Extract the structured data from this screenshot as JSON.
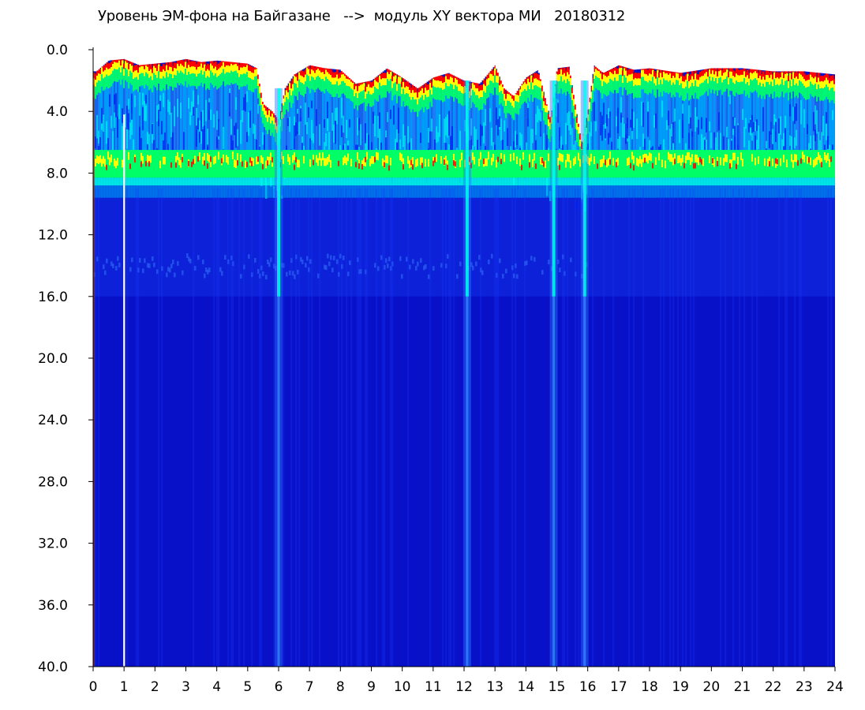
{
  "chart_data": {
    "type": "heatmap",
    "title": "Уровень ЭМ-фона на Байгазане   -->  модуль XY вектора МИ   20180312",
    "xlabel": "",
    "ylabel": "",
    "xlim": [
      0,
      24
    ],
    "ylim": [
      0,
      40
    ],
    "y_inverted": true,
    "x_ticks": [
      "0",
      "1",
      "2",
      "3",
      "4",
      "5",
      "6",
      "7",
      "8",
      "9",
      "10",
      "11",
      "12",
      "13",
      "14",
      "15",
      "16",
      "17",
      "18",
      "19",
      "20",
      "21",
      "22",
      "23",
      "24"
    ],
    "y_ticks": [
      "0.0",
      "4.0",
      "8.0",
      "12.0",
      "16.0",
      "20.0",
      "24.0",
      "28.0",
      "32.0",
      "36.0",
      "40.0"
    ],
    "grid": false,
    "colormap": [
      "#0000cc",
      "#0022ee",
      "#00aaff",
      "#00ffee",
      "#00ff66",
      "#ffff00",
      "#ff0000"
    ],
    "upper_edge_by_hour": [
      [
        0.1,
        1.4
      ],
      [
        0.5,
        0.7
      ],
      [
        1.0,
        0.6
      ],
      [
        1.5,
        1.0
      ],
      [
        2.0,
        0.9
      ],
      [
        2.5,
        0.8
      ],
      [
        3.0,
        0.6
      ],
      [
        3.5,
        0.8
      ],
      [
        4.0,
        0.7
      ],
      [
        4.5,
        0.8
      ],
      [
        5.0,
        0.9
      ],
      [
        5.3,
        1.2
      ],
      [
        5.5,
        3.5
      ],
      [
        5.8,
        4.0
      ],
      [
        6.0,
        4.5
      ],
      [
        6.2,
        2.5
      ],
      [
        6.5,
        1.6
      ],
      [
        7.0,
        1.0
      ],
      [
        7.5,
        1.2
      ],
      [
        8.0,
        1.3
      ],
      [
        8.5,
        2.2
      ],
      [
        9.0,
        2.0
      ],
      [
        9.5,
        1.2
      ],
      [
        10.0,
        1.8
      ],
      [
        10.5,
        2.5
      ],
      [
        11.0,
        1.8
      ],
      [
        11.5,
        1.5
      ],
      [
        12.0,
        2.0
      ],
      [
        12.5,
        2.2
      ],
      [
        13.0,
        1.0
      ],
      [
        13.3,
        2.5
      ],
      [
        13.6,
        3.0
      ],
      [
        14.0,
        1.8
      ],
      [
        14.4,
        1.3
      ],
      [
        14.8,
        4.5
      ],
      [
        15.0,
        1.2
      ],
      [
        15.4,
        1.1
      ],
      [
        15.8,
        6.0
      ],
      [
        16.0,
        4.0
      ],
      [
        16.2,
        1.0
      ],
      [
        16.5,
        1.5
      ],
      [
        17.0,
        1.0
      ],
      [
        17.5,
        1.3
      ],
      [
        18.0,
        1.2
      ],
      [
        19.0,
        1.5
      ],
      [
        20.0,
        1.2
      ],
      [
        20.5,
        1.2
      ],
      [
        21.0,
        1.2
      ],
      [
        22.0,
        1.4
      ],
      [
        23.0,
        1.4
      ],
      [
        24.0,
        1.6
      ]
    ],
    "green_band_center": 7.4,
    "band_lower_edge": 8.3,
    "faint_band_center": 14.0,
    "features": [
      {
        "type": "vertical-streak",
        "x": 6.0,
        "from_y": 2.5,
        "to_y": 40
      },
      {
        "type": "vertical-streak",
        "x": 12.1,
        "from_y": 2.0,
        "to_y": 40
      },
      {
        "type": "vertical-streak",
        "x": 14.9,
        "from_y": 2.0,
        "to_y": 40
      },
      {
        "type": "vertical-streak",
        "x": 15.9,
        "from_y": 2.0,
        "to_y": 40
      },
      {
        "type": "data-gap",
        "x": 1.0,
        "from_y": 4.2,
        "to_y": 40
      }
    ]
  }
}
